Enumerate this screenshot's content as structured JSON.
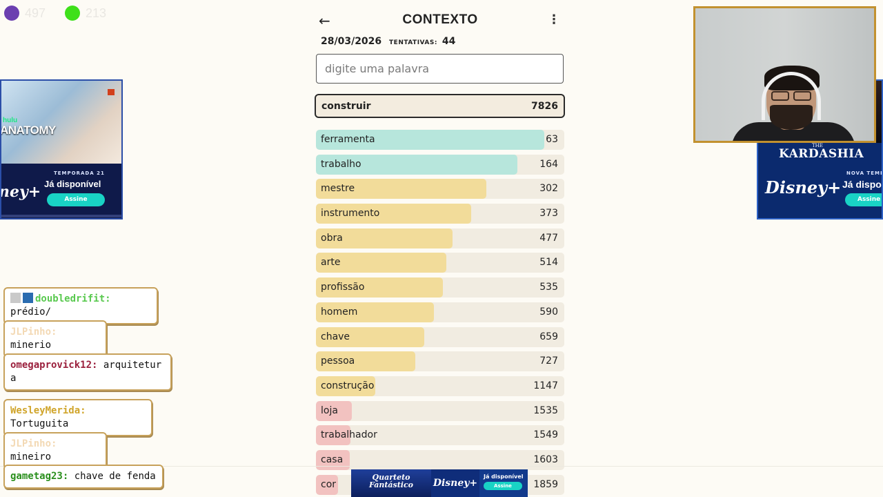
{
  "counters": [
    {
      "color": "#6b3fb0",
      "value": "497"
    },
    {
      "color": "#3ee01a",
      "value": "213"
    }
  ],
  "ads": {
    "left": {
      "brand": "hulu",
      "show": "ANATOMY",
      "season": "TEMPORADA 21",
      "available": "Já disponível",
      "cta": "Assine",
      "logo": "Disney+"
    },
    "right": {
      "the": "THE",
      "show": "KARDASHIA",
      "season": "NOVA TEMPO",
      "available": "Já dispon",
      "cta": "Assine",
      "logo": "Disney+"
    },
    "bottom": {
      "title": "Quarteto Fantástico",
      "logo": "Disney+",
      "available": "Já disponível",
      "cta": "Assine"
    }
  },
  "game": {
    "title": "CONTEXTO",
    "date": "28/03/2026",
    "attempts_label": "TENTATIVAS:",
    "attempts": "44",
    "search_placeholder": "digite uma palavra",
    "current_guess": {
      "word": "construir",
      "rank": "7826"
    },
    "guesses": [
      {
        "word": "ferramenta",
        "rank": "63",
        "fill": 0.92,
        "color": "#b7e6dc"
      },
      {
        "word": "trabalho",
        "rank": "164",
        "fill": 0.81,
        "color": "#b7e6dc"
      },
      {
        "word": "mestre",
        "rank": "302",
        "fill": 0.685,
        "color": "#f2dc9a"
      },
      {
        "word": "instrumento",
        "rank": "373",
        "fill": 0.625,
        "color": "#f2dc9a"
      },
      {
        "word": "obra",
        "rank": "477",
        "fill": 0.55,
        "color": "#f2dc9a"
      },
      {
        "word": "arte",
        "rank": "514",
        "fill": 0.525,
        "color": "#f2dc9a"
      },
      {
        "word": "profissão",
        "rank": "535",
        "fill": 0.51,
        "color": "#f2dc9a"
      },
      {
        "word": "homem",
        "rank": "590",
        "fill": 0.475,
        "color": "#f2dc9a"
      },
      {
        "word": "chave",
        "rank": "659",
        "fill": 0.435,
        "color": "#f2dc9a"
      },
      {
        "word": "pessoa",
        "rank": "727",
        "fill": 0.4,
        "color": "#f2dc9a"
      },
      {
        "word": "construção",
        "rank": "1147",
        "fill": 0.24,
        "color": "#f2dc9a"
      },
      {
        "word": "loja",
        "rank": "1535",
        "fill": 0.145,
        "color": "#f2c2c0"
      },
      {
        "word": "trabalhador",
        "rank": "1549",
        "fill": 0.14,
        "color": "#f2c2c0"
      },
      {
        "word": "casa",
        "rank": "1603",
        "fill": 0.135,
        "color": "#f2c2c0"
      },
      {
        "word": "cor",
        "rank": "1859",
        "fill": 0.09,
        "color": "#f2c2c0"
      }
    ]
  },
  "chat": [
    {
      "user": "doubledrifit:",
      "text": " prédio/",
      "user_color": "#59c94f",
      "badges": true
    },
    {
      "user": "JLPinho:",
      "text": " minerio",
      "user_color": "#f3d9b4",
      "badges": false
    },
    {
      "user": "omegaprovick12:",
      "text": " arquitetur a",
      "user_color": "#9a1f3c",
      "badges": false
    },
    {
      "user": "WesleyMerida:",
      "text": " Tortuguita",
      "user_color": "#d0a52b",
      "badges": false
    },
    {
      "user": "JLPinho:",
      "text": " mineiro",
      "user_color": "#f3d9b4",
      "badges": false
    },
    {
      "user": "gametag23:",
      "text": " chave de fenda",
      "user_color": "#2a8f1d",
      "badges": false
    }
  ]
}
